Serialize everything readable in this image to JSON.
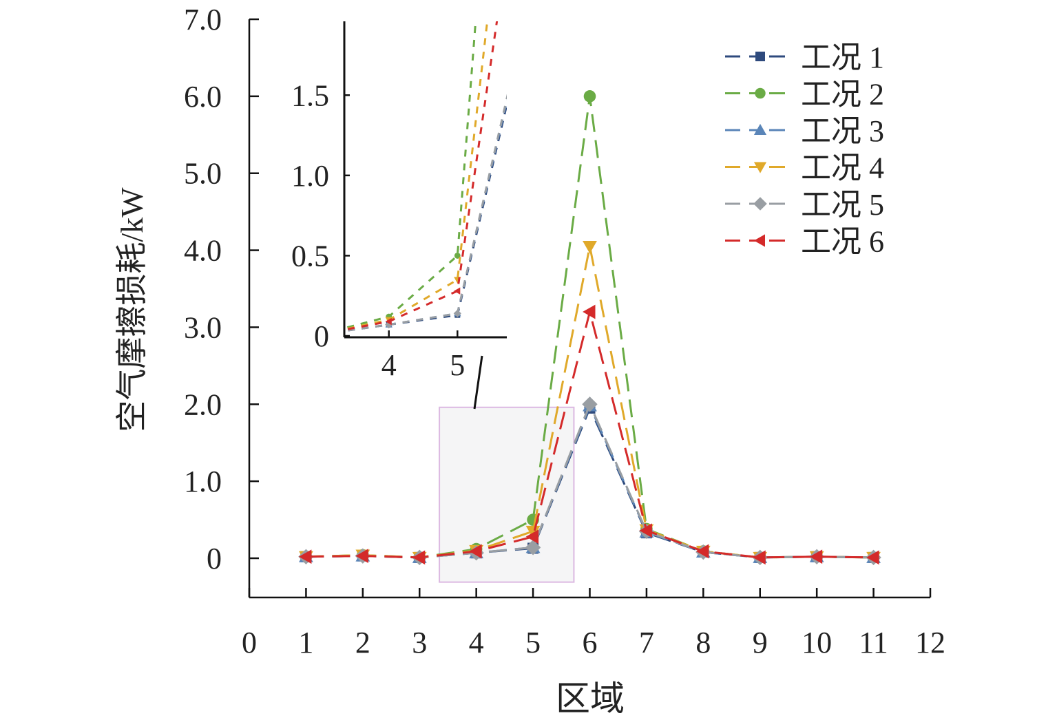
{
  "chart_data": {
    "type": "line",
    "title": "",
    "xlabel": "区域",
    "ylabel": "空气摩擦损耗/kW",
    "xlim": [
      0,
      12
    ],
    "ylim": [
      0,
      7.0
    ],
    "x_ticks": [
      "0",
      "1",
      "2",
      "3",
      "4",
      "5",
      "6",
      "7",
      "8",
      "9",
      "10",
      "11",
      "12"
    ],
    "y_ticks": [
      "0",
      "1.0",
      "2.0",
      "3.0",
      "4.0",
      "5.0",
      "6.0",
      "7.0"
    ],
    "grid": false,
    "legend_position": "top-right",
    "x": [
      1,
      2,
      3,
      4,
      5,
      6,
      7,
      8,
      9,
      10,
      11
    ],
    "series": [
      {
        "name": "工况 1",
        "color": "#2e4a7d",
        "marker": "square",
        "values": [
          0.02,
          0.03,
          0.01,
          0.07,
          0.13,
          1.95,
          0.33,
          0.08,
          0.01,
          0.02,
          0.01
        ]
      },
      {
        "name": "工况 2",
        "color": "#6aab45",
        "marker": "circle",
        "values": [
          0.02,
          0.04,
          0.01,
          0.12,
          0.5,
          6.0,
          0.38,
          0.09,
          0.01,
          0.02,
          0.01
        ]
      },
      {
        "name": "工况 3",
        "color": "#5a85b8",
        "marker": "triangle-up",
        "values": [
          0.02,
          0.03,
          0.01,
          0.07,
          0.14,
          1.98,
          0.34,
          0.08,
          0.01,
          0.02,
          0.01
        ]
      },
      {
        "name": "工况 4",
        "color": "#e0a92a",
        "marker": "triangle-down",
        "values": [
          0.02,
          0.04,
          0.01,
          0.1,
          0.35,
          4.05,
          0.37,
          0.09,
          0.01,
          0.02,
          0.01
        ]
      },
      {
        "name": "工况 5",
        "color": "#999ea3",
        "marker": "diamond",
        "values": [
          0.02,
          0.03,
          0.01,
          0.07,
          0.14,
          2.0,
          0.35,
          0.08,
          0.01,
          0.02,
          0.01
        ]
      },
      {
        "name": "工况 6",
        "color": "#d42a2a",
        "marker": "triangle-left",
        "values": [
          0.02,
          0.03,
          0.01,
          0.09,
          0.28,
          3.2,
          0.36,
          0.09,
          0.01,
          0.02,
          0.01
        ]
      }
    ],
    "inset": {
      "xlim": [
        3.35,
        5.72
      ],
      "ylim": [
        0,
        1.96
      ],
      "x_ticks": [
        "4",
        "5"
      ],
      "y_ticks": [
        "0",
        "0.5",
        "1.0",
        "1.5"
      ]
    }
  }
}
